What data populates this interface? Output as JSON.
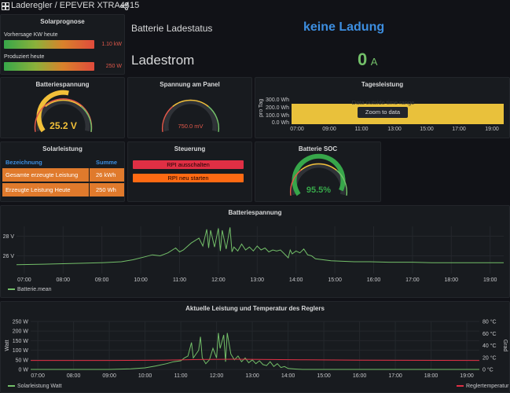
{
  "header": {
    "breadcrumb": "Laderegler  / EPEVER XTRA4415"
  },
  "solarprognose": {
    "title": "Solarprognose",
    "items": [
      {
        "label": "Vorhersage KW heute",
        "value": "1.10 kW",
        "fraction": 1.0
      },
      {
        "label": "Produziert heute",
        "value": "250 W",
        "fraction": 1.0
      }
    ]
  },
  "batterie_status": {
    "label": "Batterie Ladestatus",
    "value": "keine Ladung",
    "color": "#3d8ee0"
  },
  "ladestrom": {
    "label": "Ladestrom",
    "value": "0",
    "unit": "A",
    "color": "#73bf69"
  },
  "batteriespannung_gauge": {
    "title": "Batteriespannung",
    "value": "25.2 V",
    "fraction": 0.55,
    "color": "#f2c039"
  },
  "panel_gauge": {
    "title": "Spannung am Panel",
    "value": "750.0 mV",
    "fraction": 0.0,
    "color": "#e0584a"
  },
  "tagesleistung": {
    "title": "Tagesleistung",
    "ylabel": "pro Tag",
    "yticks": [
      "300.0 Wh",
      "200.0 Wh",
      "100.0 Wh",
      "0.0 Wh"
    ],
    "xticks": [
      "07:00",
      "09:00",
      "11:00",
      "13:00",
      "15:00",
      "17:00",
      "19:00"
    ],
    "message": "Data outside time range",
    "zoom_button": "Zoom to data",
    "bar_color": "#e9c13b"
  },
  "solarleistung": {
    "title": "Solarleistung",
    "columns": [
      "Bezeichnung",
      "Summe"
    ],
    "rows": [
      {
        "name": "Gesamte erzeugte Leistung",
        "value": "26 kWh"
      },
      {
        "name": "Erzeugte Leistung Heute",
        "value": "250 Wh"
      }
    ]
  },
  "steuerung": {
    "title": "Steuerung",
    "buttons": [
      {
        "label": "RPI ausschalten",
        "color": "#e02f44"
      },
      {
        "label": "RPI neu starten",
        "color": "#ff6a13"
      }
    ]
  },
  "soc": {
    "title": "Batterie SOC",
    "value": "95.5%",
    "fraction": 0.955,
    "color": "#37a74a"
  },
  "chart_data": [
    {
      "type": "line",
      "title": "Batteriespannung",
      "xticks": [
        "07:00",
        "08:00",
        "09:00",
        "10:00",
        "11:00",
        "12:00",
        "13:00",
        "14:00",
        "15:00",
        "16:00",
        "17:00",
        "18:00",
        "19:00"
      ],
      "yticks": [
        "28 V",
        "26 V"
      ],
      "ylim": [
        24.2,
        29.0
      ],
      "xlim": [
        6.8,
        19.35
      ],
      "series": [
        {
          "name": "Batterie.mean",
          "color": "#73bf69",
          "x": [
            6.8,
            7.5,
            8.0,
            8.5,
            9.0,
            9.5,
            9.8,
            10.1,
            10.3,
            10.5,
            10.7,
            10.9,
            11.0,
            11.1,
            11.3,
            11.5,
            11.6,
            11.7,
            11.75,
            11.8,
            11.9,
            12.0,
            12.05,
            12.1,
            12.2,
            12.3,
            12.35,
            12.4,
            12.5,
            12.6,
            12.7,
            12.8,
            12.9,
            13.0,
            13.1,
            13.2,
            13.3,
            13.4,
            13.5,
            13.6,
            13.7,
            13.8,
            13.85,
            13.9,
            14.0,
            14.1,
            14.2,
            14.3,
            14.4,
            14.5,
            14.7,
            14.9,
            15.2,
            15.5,
            15.9,
            16.4,
            17.0,
            17.5,
            18.0,
            18.5,
            19.0,
            19.35
          ],
          "y": [
            25.1,
            25.15,
            25.2,
            25.25,
            25.3,
            25.4,
            25.6,
            25.9,
            26.1,
            26.0,
            26.3,
            26.8,
            26.4,
            26.6,
            27.3,
            27.8,
            27.0,
            28.7,
            26.8,
            28.6,
            26.9,
            28.8,
            26.5,
            28.6,
            26.7,
            28.9,
            26.4,
            26.9,
            26.5,
            27.2,
            26.6,
            26.9,
            26.5,
            27.0,
            26.6,
            26.8,
            26.4,
            26.6,
            26.5,
            26.6,
            26.2,
            25.8,
            26.6,
            26.2,
            26.5,
            26.3,
            26.7,
            26.1,
            26.0,
            25.7,
            25.6,
            25.5,
            25.45,
            25.4,
            25.4,
            25.35,
            25.35,
            25.3,
            25.3,
            25.3,
            25.3,
            25.3
          ]
        }
      ]
    },
    {
      "type": "line",
      "title": "Aktuelle Leistung und Temperatur des Reglers",
      "xticks": [
        "07:00",
        "08:00",
        "09:00",
        "10:00",
        "11:00",
        "12:00",
        "13:00",
        "14:00",
        "15:00",
        "16:00",
        "17:00",
        "18:00",
        "19:00"
      ],
      "yticks_left": [
        "250 W",
        "200 W",
        "150 W",
        "100 W",
        "50 W",
        "0 W"
      ],
      "yticks_right": [
        "80 °C",
        "60 °C",
        "40 °C",
        "20 °C",
        "0 °C"
      ],
      "ylabel_left": "Watt",
      "ylabel_right": "Grad",
      "ylim_left": [
        0,
        250
      ],
      "ylim_right": [
        0,
        80
      ],
      "xlim": [
        6.8,
        19.35
      ],
      "series": [
        {
          "name": "Solarleistung Watt",
          "axis": "left",
          "color": "#73bf69",
          "x": [
            6.8,
            9.0,
            9.6,
            10.0,
            10.3,
            10.6,
            10.8,
            11.0,
            11.1,
            11.2,
            11.3,
            11.35,
            11.5,
            11.55,
            11.6,
            11.7,
            11.8,
            11.9,
            12.0,
            12.05,
            12.1,
            12.2,
            12.25,
            12.3,
            12.4,
            12.5,
            12.6,
            12.7,
            12.8,
            12.9,
            13.0,
            13.1,
            13.2,
            13.3,
            13.4,
            13.5,
            13.6,
            13.7,
            13.8,
            13.9,
            14.0,
            14.2,
            14.4,
            19.35
          ],
          "y": [
            0,
            0,
            3,
            8,
            18,
            30,
            40,
            45,
            60,
            70,
            140,
            60,
            100,
            170,
            60,
            30,
            50,
            110,
            60,
            190,
            110,
            180,
            40,
            190,
            80,
            50,
            70,
            40,
            60,
            35,
            50,
            30,
            45,
            25,
            20,
            40,
            15,
            30,
            10,
            15,
            5,
            2,
            0,
            0
          ]
        },
        {
          "name": "Reglertemperatur",
          "axis": "right",
          "color": "#e02f44",
          "x": [
            6.8,
            9.0,
            10.5,
            11.5,
            12.5,
            13.5,
            14.5,
            16.0,
            19.35
          ],
          "y": [
            15,
            15,
            15.5,
            16.5,
            17,
            16.5,
            16,
            15.5,
            15
          ]
        }
      ]
    }
  ]
}
